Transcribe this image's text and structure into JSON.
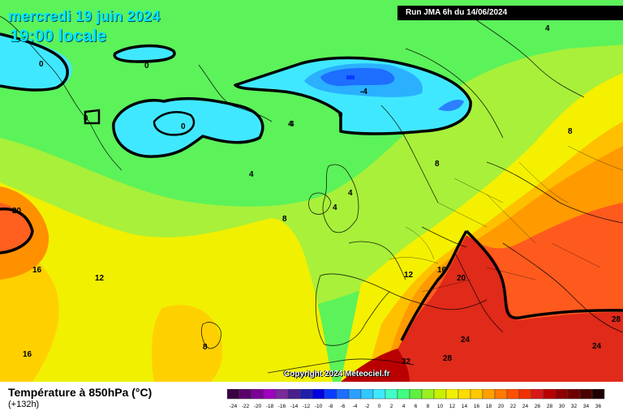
{
  "header": {
    "date": "mercredi 19 juin 2024",
    "time": "19:00 locale",
    "run": "Run JMA 6h du 14/06/2024"
  },
  "copyright": "Copyright 2024 Meteociel.fr",
  "variable": {
    "title": "Température à 850hPa (°C)",
    "lead": "(+132h)"
  },
  "map_labels": [
    "0",
    "0",
    "0",
    "0",
    "0",
    "-4",
    "4",
    "4",
    "4",
    "4",
    "4",
    "4",
    "8",
    "8",
    "8",
    "8",
    "12",
    "12",
    "16",
    "16",
    "16",
    "20",
    "20",
    "24",
    "24",
    "28",
    "28",
    "32"
  ],
  "legend": {
    "values": [
      "-24",
      "-22",
      "-20",
      "-18",
      "-16",
      "-14",
      "-12",
      "-10",
      "-8",
      "-6",
      "-4",
      "-2",
      "0",
      "2",
      "4",
      "6",
      "8",
      "10",
      "12",
      "14",
      "16",
      "18",
      "20",
      "22",
      "24",
      "26",
      "28",
      "30",
      "32",
      "34",
      "36"
    ],
    "colors": [
      "#3b0042",
      "#5a006a",
      "#7d0096",
      "#a000c0",
      "#7a2a9a",
      "#4b1f8c",
      "#1f1faa",
      "#0000e0",
      "#0a3cff",
      "#1e6eff",
      "#2aa0ff",
      "#30c8ff",
      "#40e8ff",
      "#40ffc8",
      "#40ff80",
      "#60f040",
      "#9af020",
      "#c8f000",
      "#f0f000",
      "#ffdc00",
      "#ffc800",
      "#ffa000",
      "#ff7800",
      "#ff5000",
      "#f03000",
      "#d81818",
      "#b80000",
      "#900000",
      "#700000",
      "#4a0000",
      "#200000"
    ]
  }
}
